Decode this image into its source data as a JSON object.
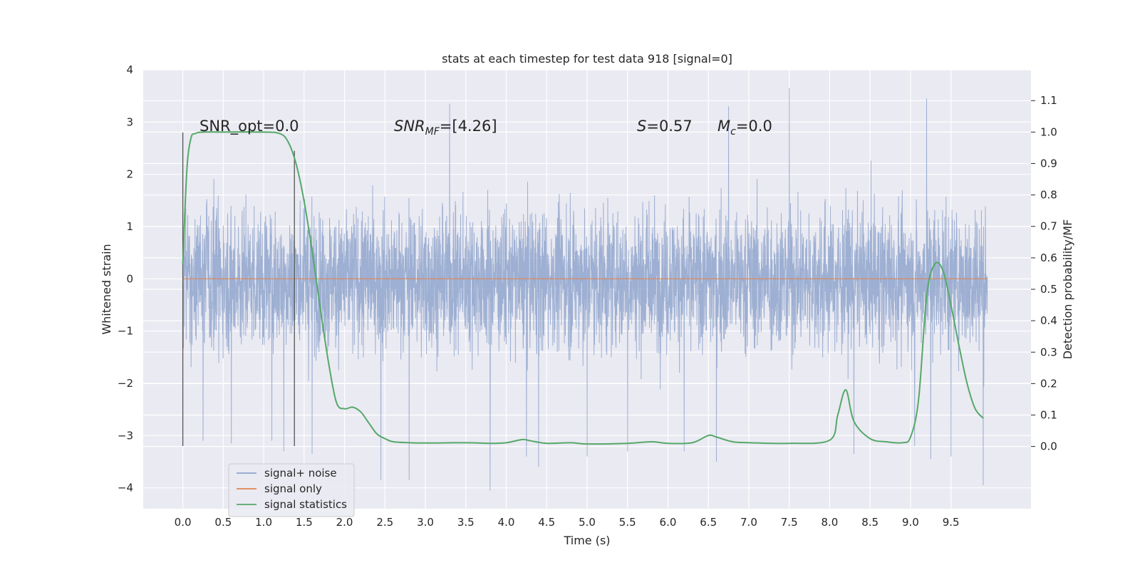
{
  "chart_data": {
    "type": "line",
    "title": "stats at each timestep for test data 918 [signal=0]",
    "xlabel": "Time (s)",
    "ylabel": "Whitened strain",
    "y2label": "Detection probability/MF",
    "xlim": [
      -0.49,
      10.49
    ],
    "ylim": [
      -4.4,
      4.0
    ],
    "y2lim": [
      -0.198,
      1.198
    ],
    "xticks": [
      0.0,
      0.5,
      1.0,
      1.5,
      2.0,
      2.5,
      3.0,
      3.5,
      4.0,
      4.5,
      5.0,
      5.5,
      6.0,
      6.5,
      7.0,
      7.5,
      8.0,
      8.5,
      9.0,
      9.5
    ],
    "xtick_labels": [
      "0.0",
      "0.5",
      "1.0",
      "1.5",
      "2.0",
      "2.5",
      "3.0",
      "3.5",
      "4.0",
      "4.5",
      "5.0",
      "5.5",
      "6.0",
      "6.5",
      "7.0",
      "7.5",
      "8.0",
      "8.5",
      "9.0",
      "9.5"
    ],
    "yticks": [
      -4,
      -3,
      -2,
      -1,
      0,
      1,
      2,
      3,
      4
    ],
    "ytick_labels": [
      "−4",
      "−3",
      "−2",
      "−1",
      "0",
      "1",
      "2",
      "3",
      "4"
    ],
    "y2ticks": [
      0.0,
      0.1,
      0.2,
      0.3,
      0.4,
      0.5,
      0.6,
      0.7,
      0.8,
      0.9,
      1.0,
      1.1
    ],
    "y2tick_labels": [
      "0.0",
      "0.1",
      "0.2",
      "0.3",
      "0.4",
      "0.5",
      "0.6",
      "0.7",
      "0.8",
      "0.9",
      "1.0",
      "1.1"
    ],
    "grid": true,
    "legend_position": "lower-left",
    "annotations": {
      "snr_opt": "SNR_opt=0.0",
      "snr_mf_base": "SNR",
      "snr_mf_sub": "MF",
      "snr_mf_tail": "=[4.26]",
      "s_label": "S",
      "s_value": "=0.57",
      "mc_label": "M",
      "mc_sub": "c",
      "mc_value": "=0.0"
    },
    "vlines": [
      {
        "x": 0.0,
        "y_range": [
          -3.2,
          2.8
        ]
      },
      {
        "x": 1.38,
        "y_range": [
          -3.2,
          2.45
        ]
      }
    ],
    "series": [
      {
        "name": "signal+ noise",
        "color": "#8fa4cc",
        "axis": "left",
        "x_range": [
          0.0,
          9.95
        ],
        "sample_count": 4096,
        "band_approx": [
          -1.45,
          1.6
        ],
        "extreme_values": [
          [
            0.25,
            -3.1
          ],
          [
            0.6,
            -3.15
          ],
          [
            1.1,
            -3.1
          ],
          [
            1.25,
            -3.3
          ],
          [
            1.6,
            -3.35
          ],
          [
            2.45,
            -3.85
          ],
          [
            2.8,
            -3.85
          ],
          [
            3.3,
            3.35
          ],
          [
            3.8,
            -4.05
          ],
          [
            4.25,
            -3.4
          ],
          [
            4.4,
            -3.6
          ],
          [
            5.0,
            -3.4
          ],
          [
            5.5,
            -3.3
          ],
          [
            6.2,
            -3.3
          ],
          [
            6.6,
            -3.5
          ],
          [
            6.75,
            3.3
          ],
          [
            7.5,
            3.65
          ],
          [
            8.3,
            -3.35
          ],
          [
            9.05,
            -3.2
          ],
          [
            9.2,
            3.45
          ],
          [
            9.25,
            -3.45
          ],
          [
            9.5,
            -3.4
          ],
          [
            9.9,
            -3.95
          ]
        ]
      },
      {
        "name": "signal only",
        "color": "#dd8452",
        "axis": "left",
        "x": [
          0.0,
          9.95
        ],
        "values": [
          0.0,
          0.0
        ]
      },
      {
        "name": "signal statistics",
        "color": "#55a868",
        "axis": "right",
        "x": [
          0.0,
          0.05,
          0.1,
          0.15,
          0.25,
          0.5,
          1.0,
          1.2,
          1.3,
          1.4,
          1.5,
          1.6,
          1.7,
          1.8,
          1.9,
          2.0,
          2.1,
          2.2,
          2.3,
          2.4,
          2.5,
          2.6,
          2.8,
          3.0,
          3.5,
          3.8,
          4.0,
          4.2,
          4.3,
          4.5,
          4.8,
          5.0,
          5.5,
          5.8,
          6.0,
          6.3,
          6.5,
          6.6,
          6.8,
          7.0,
          7.5,
          8.0,
          8.1,
          8.2,
          8.3,
          8.5,
          8.7,
          8.9,
          9.0,
          9.1,
          9.2,
          9.3,
          9.4,
          9.5,
          9.6,
          9.7,
          9.8,
          9.9
        ],
        "values": [
          0.58,
          0.88,
          0.98,
          0.995,
          1.0,
          1.0,
          1.0,
          0.995,
          0.97,
          0.9,
          0.78,
          0.62,
          0.44,
          0.27,
          0.14,
          0.12,
          0.125,
          0.11,
          0.075,
          0.04,
          0.025,
          0.015,
          0.012,
          0.011,
          0.012,
          0.01,
          0.012,
          0.022,
          0.018,
          0.01,
          0.012,
          0.008,
          0.01,
          0.015,
          0.01,
          0.012,
          0.035,
          0.03,
          0.015,
          0.012,
          0.01,
          0.02,
          0.1,
          0.18,
          0.08,
          0.025,
          0.015,
          0.012,
          0.03,
          0.15,
          0.48,
          0.58,
          0.56,
          0.45,
          0.32,
          0.2,
          0.12,
          0.09
        ]
      }
    ]
  }
}
